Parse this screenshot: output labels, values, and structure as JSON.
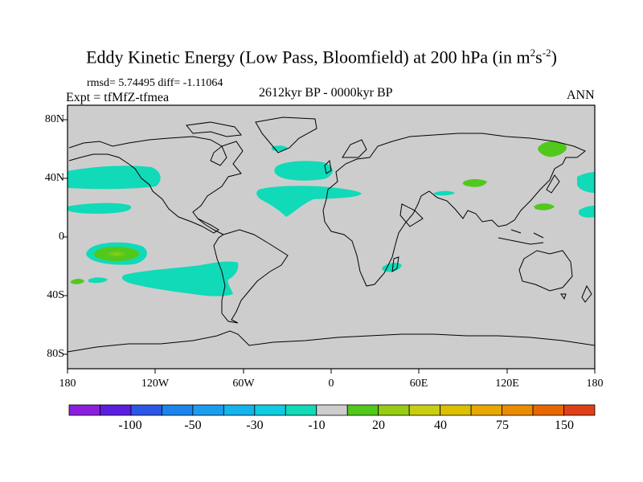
{
  "title": {
    "main": "Eddy Kinetic Energy (Low Pass, Bloomfield) at 200 hPa (in m",
    "sup1": "2",
    "mid": "s",
    "sup2": "-2",
    "end": ")"
  },
  "stats": "rmsd= 5.74495 diff= -1.11064",
  "experiment": "Expt = tfMfZ-tfmea",
  "period": "2612kyr BP - 0000kyr BP",
  "season": "ANN",
  "map": {
    "projection": "cylindrical equidistant",
    "background_color": "#cdcdcd",
    "lat_labels": [
      "80N",
      "40N",
      "0",
      "40S",
      "80S"
    ],
    "lon_labels": [
      "180",
      "120W",
      "60W",
      "0",
      "60E",
      "120E",
      "180"
    ],
    "anomalies": [
      {
        "name": "N Pacific band",
        "level": "-10",
        "color": "#10dab8"
      },
      {
        "name": "N Atlantic storm track",
        "level": "-10",
        "color": "#10dab8"
      },
      {
        "name": "Tropical E Pacific center",
        "level": "20",
        "color": "#52c81c"
      },
      {
        "name": "S Pacific band",
        "level": "-10",
        "color": "#10dab8"
      },
      {
        "name": "Kamchatka",
        "level": "20",
        "color": "#52c81c"
      },
      {
        "name": "Tibet",
        "level": "20",
        "color": "#52c81c"
      },
      {
        "name": "Madagascar",
        "level": "-10",
        "color": "#10dab8"
      }
    ]
  },
  "colorbar": {
    "colors": [
      "#8c1ede",
      "#5c1ede",
      "#2b56e6",
      "#1c84ec",
      "#1c9cee",
      "#14b4ec",
      "#10cce0",
      "#10dab8",
      "#cdcdcd",
      "#52c81c",
      "#96cc14",
      "#c8ce10",
      "#dcc000",
      "#e8a800",
      "#ec8c00",
      "#e86800",
      "#e04018"
    ],
    "labels": [
      "-100",
      "-50",
      "-30",
      "-10",
      "20",
      "40",
      "75",
      "150"
    ]
  }
}
